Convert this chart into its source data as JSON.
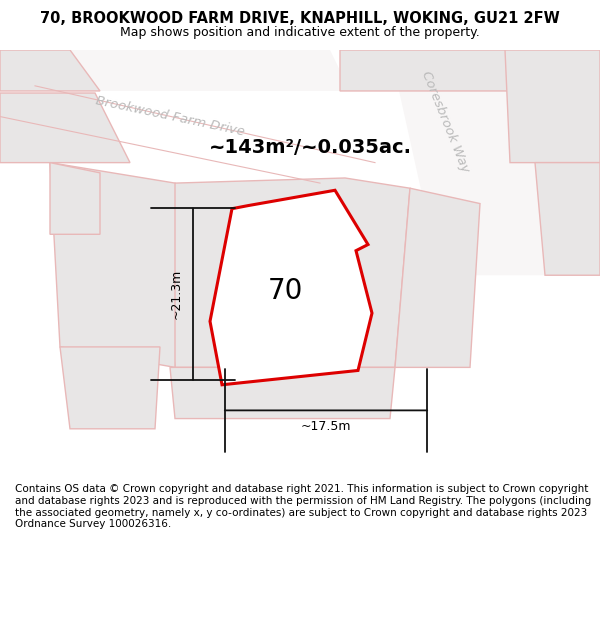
{
  "title": "70, BROOKWOOD FARM DRIVE, KNAPHILL, WOKING, GU21 2FW",
  "subtitle": "Map shows position and indicative extent of the property.",
  "footer": "Contains OS data © Crown copyright and database right 2021. This information is subject to Crown copyright and database rights 2023 and is reproduced with the permission of HM Land Registry. The polygons (including the associated geometry, namely x, y co-ordinates) are subject to Crown copyright and database rights 2023 Ordnance Survey 100026316.",
  "area_label": "~143m²/~0.035ac.",
  "width_label": "~17.5m",
  "height_label": "~21.3m",
  "plot_number": "70",
  "street_label1": "Brookwood Farm Drive",
  "street_label2": "Coresbrook Way",
  "bg_color": "#ffffff",
  "road_band_color": "#f0eeee",
  "neighbor_fill": "#e8e6e6",
  "neighbor_outline": "#e8b8b8",
  "plot_fill": "#e8e6e6",
  "plot_outline": "#dd0000",
  "dim_line_color": "#111111",
  "street_color": "#bbbbbb",
  "title_fontsize": 10.5,
  "subtitle_fontsize": 9,
  "footer_fontsize": 7.5
}
